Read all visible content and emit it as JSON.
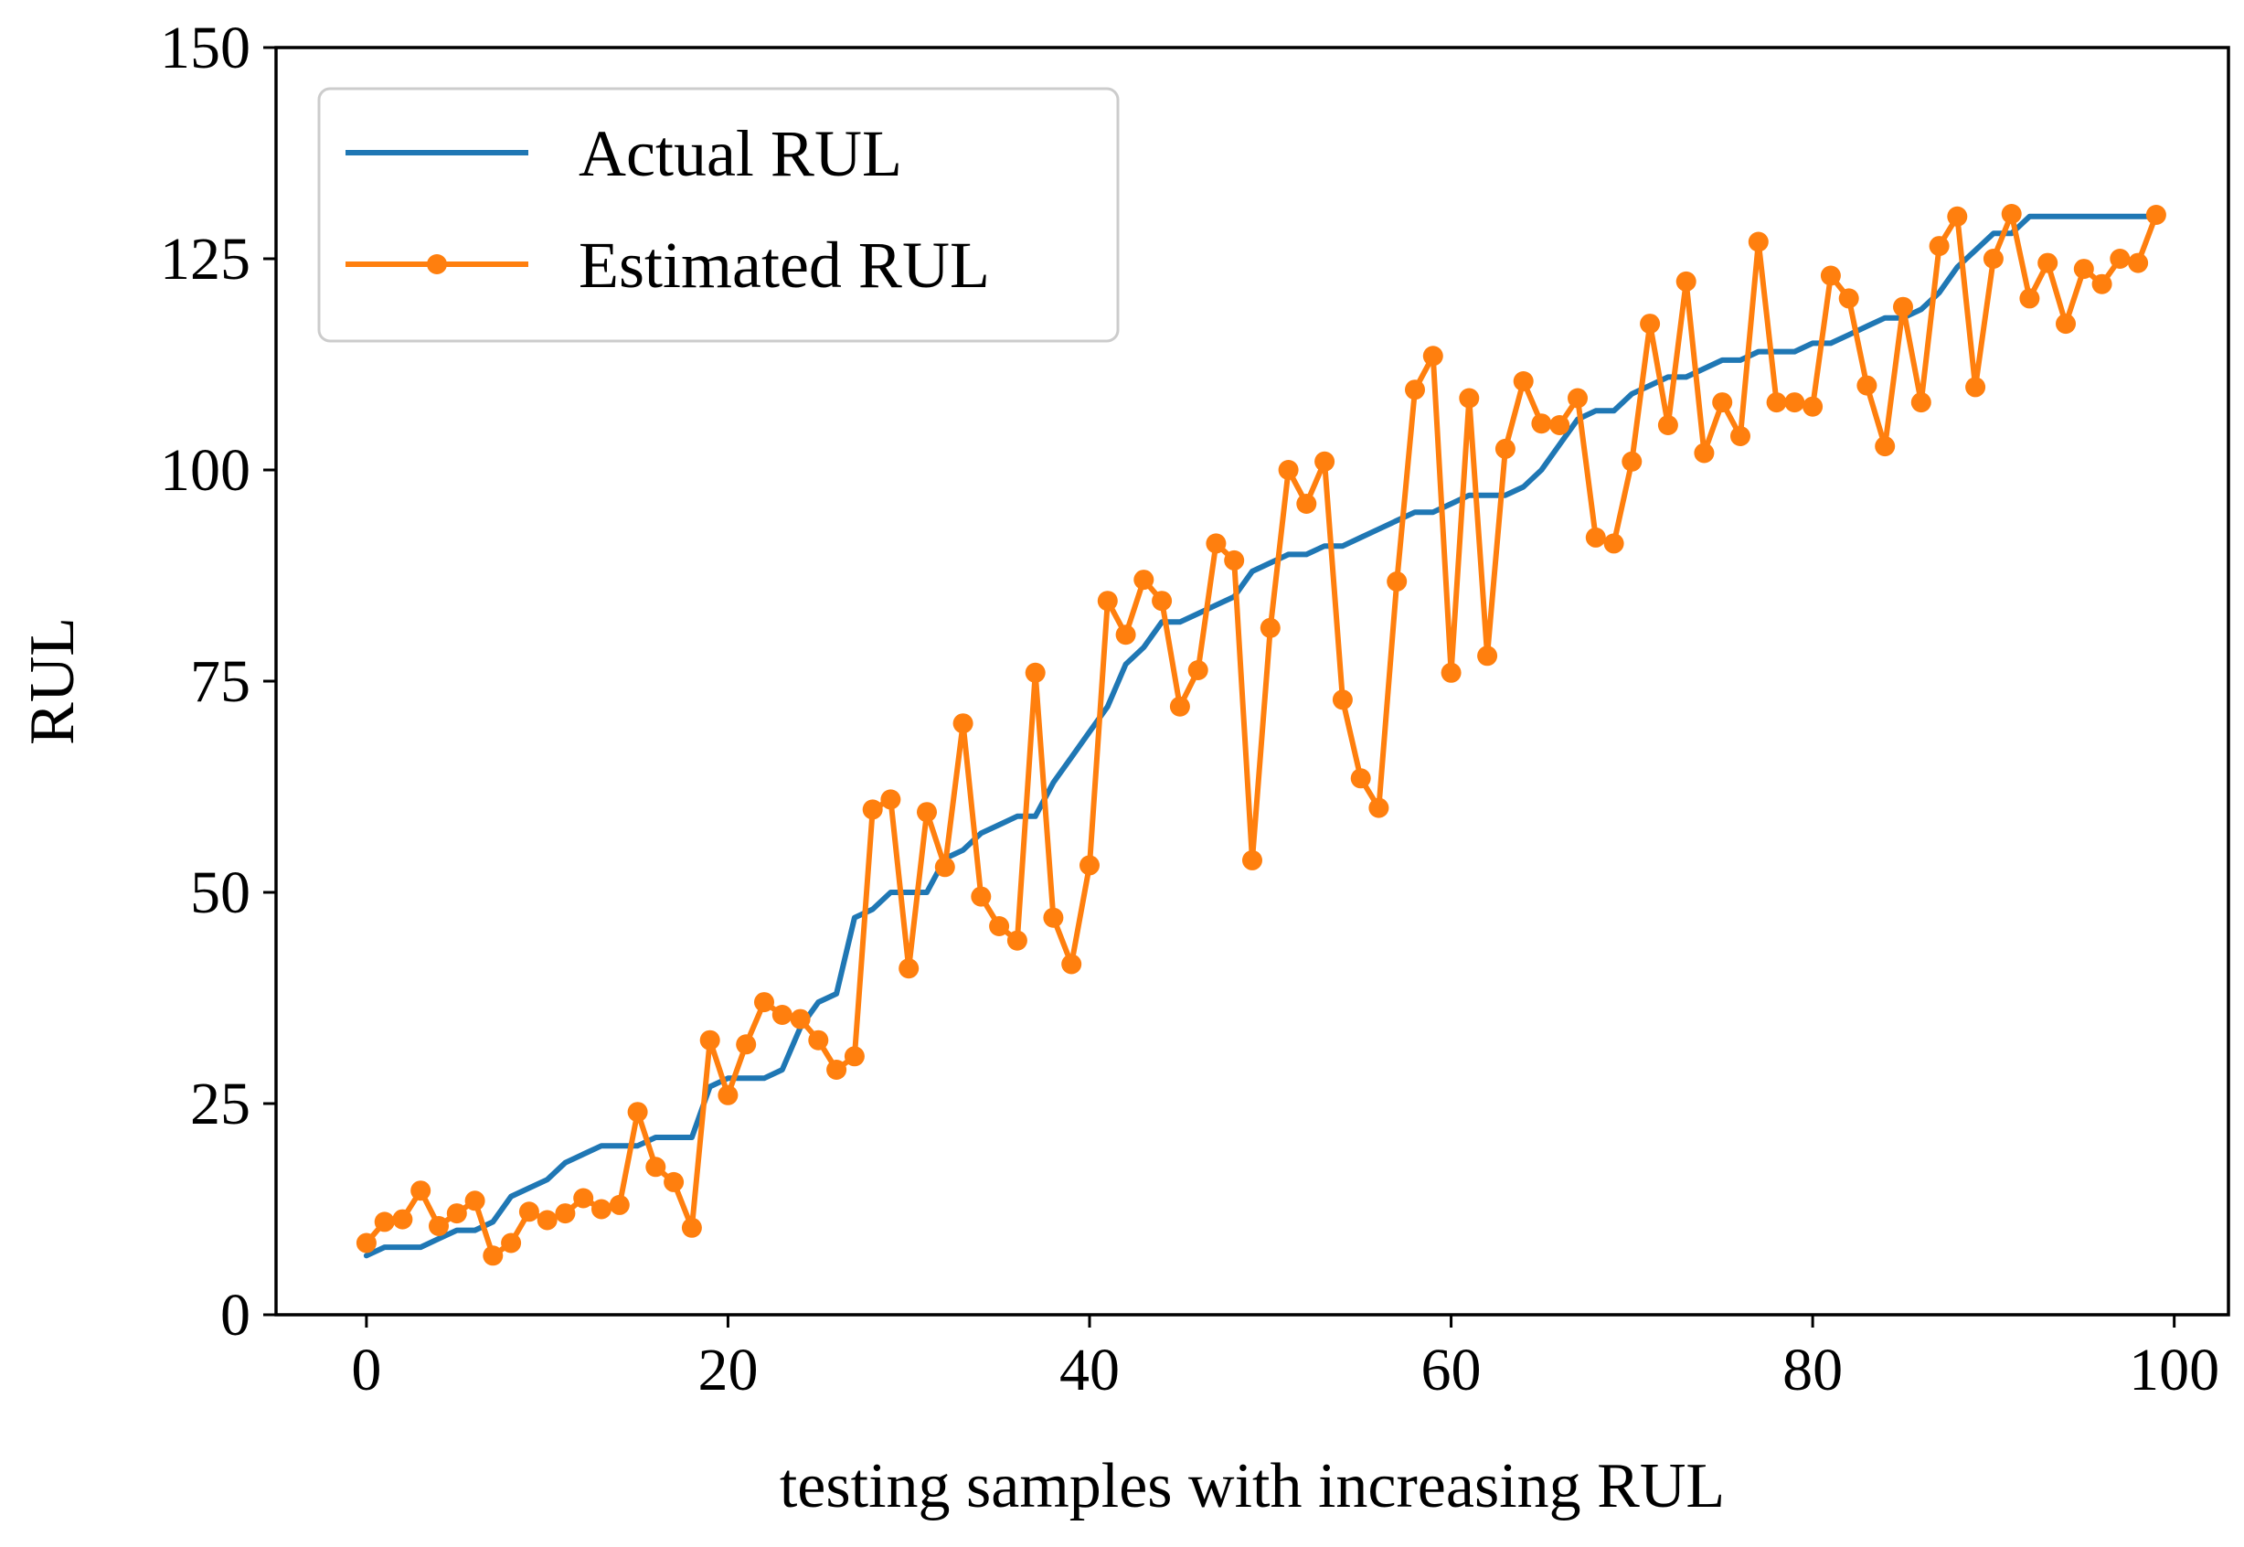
{
  "chart_data": {
    "type": "line",
    "title": "",
    "xlabel": "testing samples with increasing RUL",
    "ylabel": "RUL",
    "xlim": [
      -5,
      103
    ],
    "ylim": [
      0,
      150
    ],
    "xticks": [
      0,
      20,
      40,
      60,
      80,
      100
    ],
    "yticks": [
      0,
      25,
      50,
      75,
      100,
      125,
      150
    ],
    "grid": false,
    "legend_position": "top-left",
    "series": [
      {
        "name": "Actual RUL",
        "color": "#1f77b4",
        "marker": "none",
        "values": [
          7,
          8,
          8,
          8,
          9,
          10,
          10,
          11,
          14,
          15,
          16,
          18,
          19,
          20,
          20,
          20,
          21,
          21,
          21,
          27,
          28,
          28,
          28,
          29,
          34,
          37,
          38,
          47,
          48,
          50,
          50,
          50,
          54,
          55,
          57,
          58,
          59,
          59,
          63,
          66,
          69,
          72,
          77,
          79,
          82,
          82,
          83,
          84,
          85,
          88,
          89,
          90,
          90,
          91,
          91,
          92,
          93,
          94,
          95,
          95,
          96,
          97,
          97,
          97,
          98,
          100,
          103,
          106,
          107,
          107,
          109,
          110,
          111,
          111,
          112,
          113,
          113,
          114,
          114,
          114,
          115,
          115,
          116,
          117,
          118,
          118,
          119,
          121,
          124,
          126,
          128,
          128,
          130,
          130,
          130,
          130,
          130,
          130,
          130,
          130
        ]
      },
      {
        "name": "Estimated RUL",
        "color": "#ff7f0e",
        "marker": "circle",
        "values": [
          8.5,
          11,
          11.3,
          14.7,
          10.5,
          12,
          13.5,
          7,
          8.5,
          12.2,
          11.2,
          12,
          13.8,
          12.5,
          13,
          24,
          17.5,
          15.7,
          10.3,
          32.5,
          26,
          32,
          37,
          35.5,
          35,
          32.5,
          29,
          30.6,
          59.8,
          61,
          41,
          59.5,
          53,
          70,
          49.5,
          46,
          44.3,
          76,
          47,
          41.5,
          53.2,
          84.5,
          80.5,
          87,
          84.5,
          72,
          76.3,
          91.3,
          89.3,
          53.8,
          81.3,
          100,
          96,
          101,
          72.8,
          63.5,
          60,
          86.8,
          109.5,
          113.5,
          76,
          108.5,
          78,
          102.5,
          110.5,
          105.5,
          105.3,
          108.5,
          92,
          91.3,
          101,
          117.3,
          105.3,
          122.3,
          102,
          108,
          104,
          127,
          108,
          108,
          107.5,
          123,
          120.3,
          110,
          102.8,
          119.3,
          108,
          126.5,
          130,
          109.8,
          125,
          130.3,
          120.3,
          124.5,
          117.3,
          123.8,
          122,
          125,
          124.5,
          130.2
        ]
      }
    ]
  }
}
